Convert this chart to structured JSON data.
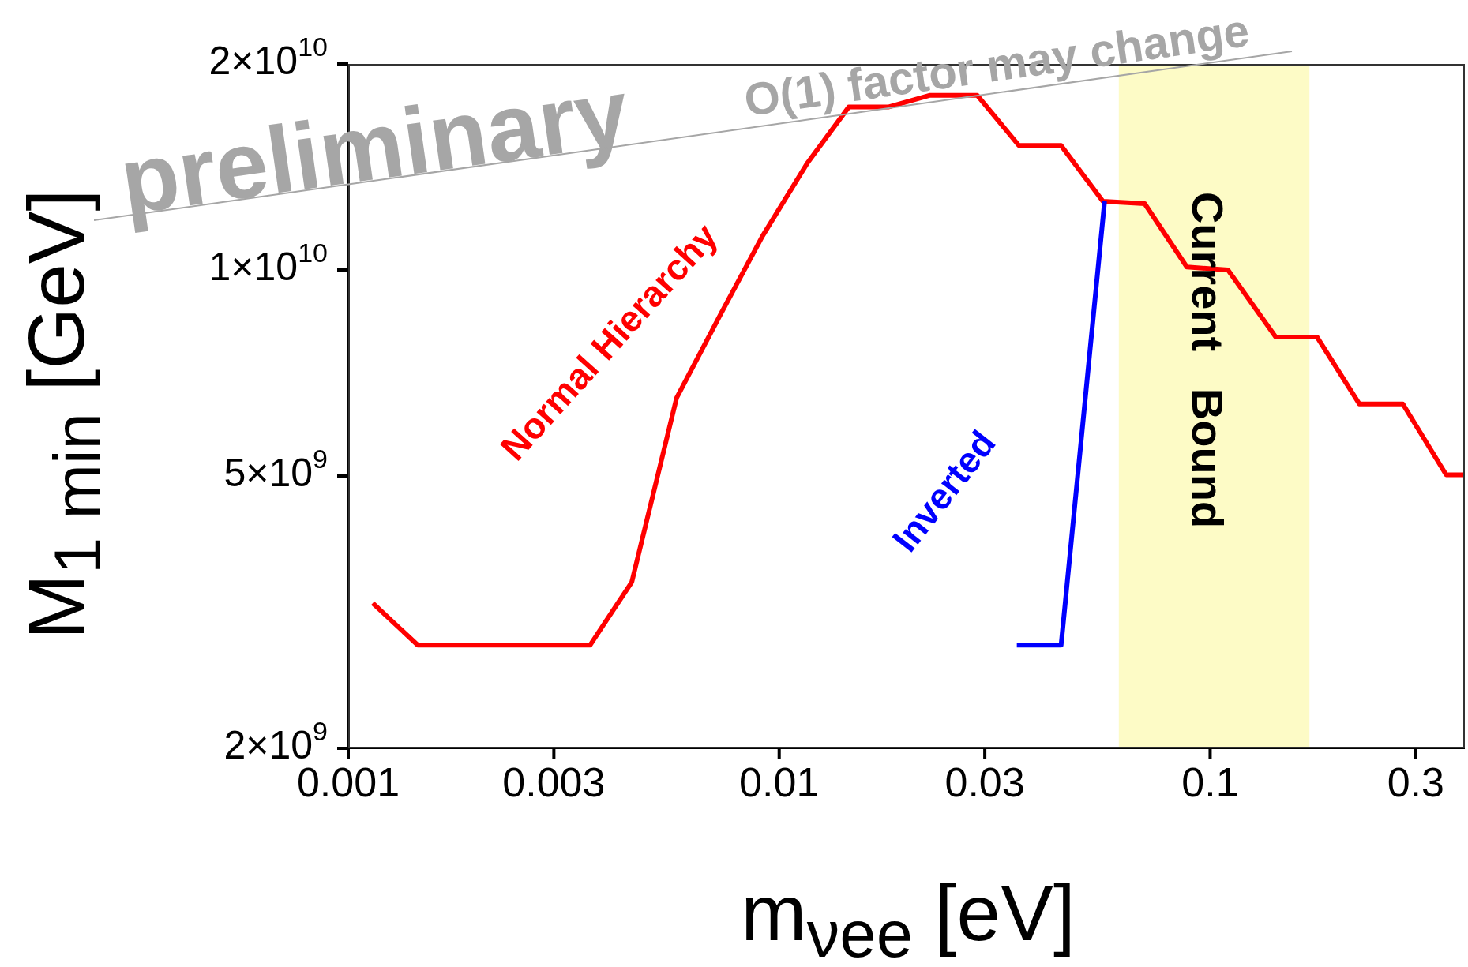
{
  "chart_data": {
    "type": "line",
    "xlabel": "m$_{νee}$ [eV]",
    "ylabel": "M$_{1 min}$ [GeV]",
    "log": "xy",
    "xlim": [
      0.001,
      0.39
    ],
    "ylim": [
      2000000000,
      20000000000
    ],
    "xticks": [
      0.001,
      0.003,
      0.01,
      0.03,
      0.1,
      0.3
    ],
    "yticks": [
      {
        "value": 2000000000,
        "label": "2×10$^{9}$"
      },
      {
        "value": 5000000000,
        "label": "5×10$^{9}$"
      },
      {
        "value": 10000000000,
        "label": "1×10$^{10}$"
      },
      {
        "value": 20000000000,
        "label": "2×10$^{10}$"
      }
    ],
    "marker": "none",
    "line_style": "solid",
    "series": [
      {
        "name": "Normal Hierarchy",
        "color": "#ff0000",
        "x": [
          0.00114,
          0.00145,
          0.00364,
          0.00455,
          0.00578,
          0.0073,
          0.00914,
          0.0116,
          0.0145,
          0.0179,
          0.0224,
          0.0288,
          0.036,
          0.0451,
          0.0564,
          0.0705,
          0.0883,
          0.11,
          0.142,
          0.177,
          0.222,
          0.28,
          0.353,
          0.39
        ],
        "values": [
          3260000000,
          2830000000,
          2830000000,
          3500000000,
          6500000000,
          8600000000,
          11200000000,
          14300000000,
          17300000000,
          17300000000,
          18000000000,
          18000000000,
          15200000000,
          15200000000,
          12600000000,
          12500000000,
          10100000000,
          10000000000,
          7980000000,
          7980000000,
          6370000000,
          6370000000,
          5020000000,
          5020000000
        ]
      },
      {
        "name": "Inverted",
        "color": "#0000ff",
        "x": [
          0.0356,
          0.0451,
          0.0569
        ],
        "values": [
          2830000000,
          2830000000,
          12600000000
        ]
      }
    ],
    "bands": [
      {
        "axis": "x",
        "from": 0.0614,
        "to": 0.17,
        "label": "Current   Bound",
        "color": "#fbf9a0"
      }
    ],
    "annotations": [
      "preliminary",
      "O(1) factor may change"
    ]
  }
}
